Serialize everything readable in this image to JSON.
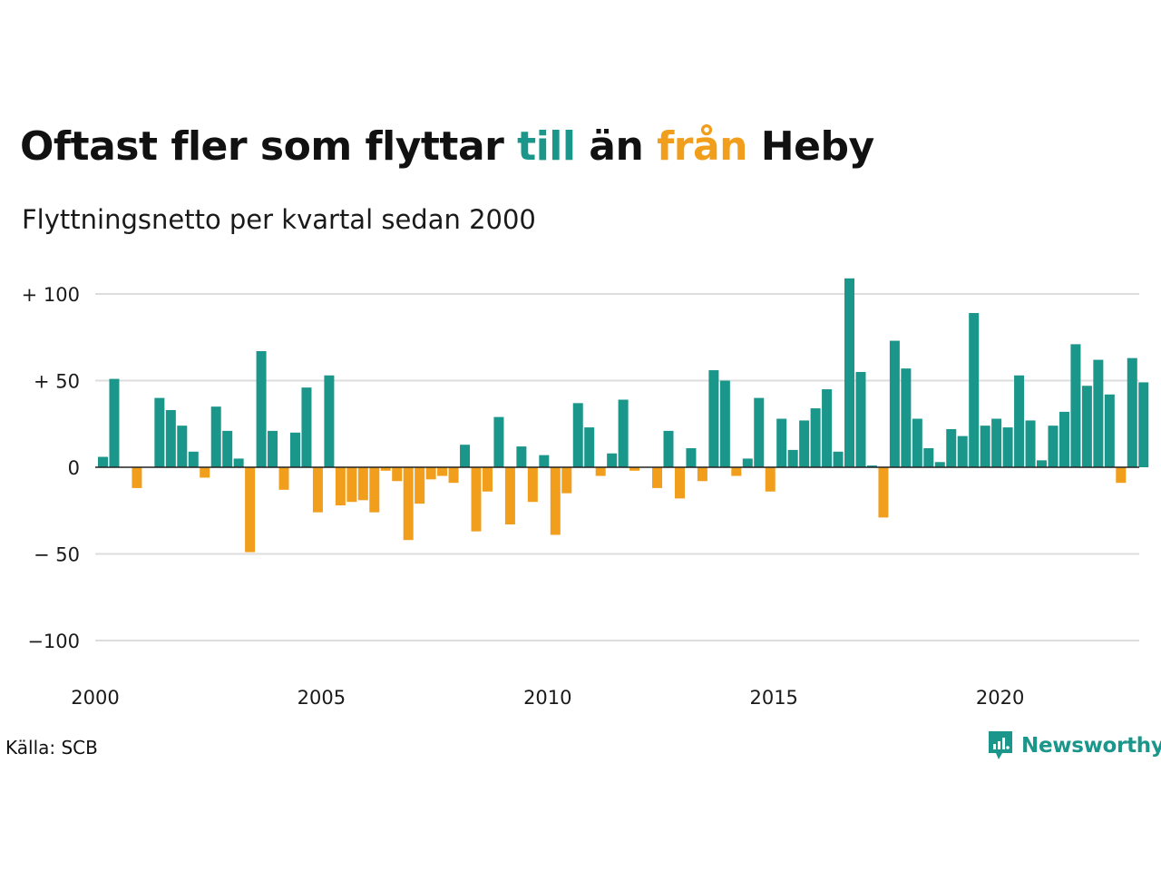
{
  "header": {
    "title_part1": "Oftast fler som flyttar ",
    "title_till": "till",
    "title_part2": " än ",
    "title_fran": "från",
    "title_part3": " Heby",
    "subtitle": "Flyttningsnetto per kvartal sedan 2000"
  },
  "footer": {
    "source": "Källa: SCB",
    "brand": "Newsworthy",
    "brand_icon": "newsworthy-logo-icon"
  },
  "colors": {
    "positive": "#1a968a",
    "negative": "#f29e1d",
    "grid": "#dddddd",
    "zero_line": "#222222"
  },
  "chart_data": {
    "type": "bar",
    "title": "Oftast fler som flyttar till än från Heby",
    "subtitle": "Flyttningsnetto per kvartal sedan 2000",
    "start_year": 2000,
    "periods_per_year": 4,
    "ylim": [
      -120,
      110
    ],
    "yticks": [
      {
        "value": 100,
        "label": "+ 100"
      },
      {
        "value": 50,
        "label": "+  50"
      },
      {
        "value": 0,
        "label": "0"
      },
      {
        "value": -50,
        "label": "− 50"
      },
      {
        "value": -100,
        "label": "−100"
      }
    ],
    "xticks": [
      "2000",
      "2005",
      "2010",
      "2015",
      "2020"
    ],
    "grid": true,
    "values": [
      6,
      51,
      0,
      -12,
      0,
      40,
      33,
      24,
      9,
      -6,
      35,
      21,
      5,
      -49,
      67,
      21,
      -13,
      20,
      46,
      -26,
      53,
      -22,
      -20,
      -19,
      -26,
      -2,
      -8,
      -42,
      -21,
      -7,
      -5,
      -9,
      13,
      -37,
      -14,
      29,
      -33,
      12,
      -20,
      7,
      -39,
      -15,
      37,
      23,
      -5,
      8,
      39,
      -2,
      0,
      -12,
      21,
      -18,
      11,
      -8,
      56,
      50,
      -5,
      5,
      40,
      -14,
      28,
      10,
      27,
      34,
      45,
      9,
      109,
      55,
      1,
      -29,
      73,
      57,
      28,
      11,
      3,
      22,
      18,
      89,
      24,
      28,
      23,
      53,
      27,
      4,
      24,
      32,
      71,
      47,
      62,
      42,
      -9,
      63,
      49
    ]
  }
}
